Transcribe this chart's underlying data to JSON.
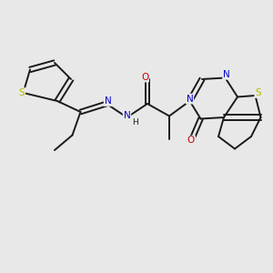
{
  "background_color": "#e8e8e8",
  "bond_color": "#1a1a1a",
  "bond_width": 1.4,
  "S_color": "#b8b800",
  "N_color": "#0000cc",
  "O_color": "#cc0000",
  "C_color": "#1a1a1a",
  "figsize": [
    3.0,
    3.0
  ],
  "dpi": 100,
  "xlim": [
    0,
    10
  ],
  "ylim": [
    0,
    10
  ]
}
